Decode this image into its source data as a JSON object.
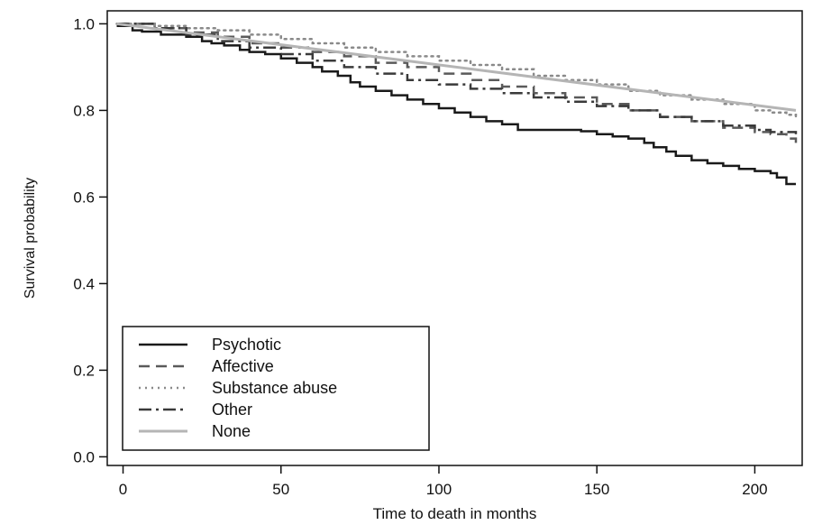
{
  "chart_data": {
    "type": "line",
    "title": "",
    "xlabel": "Time to death in months",
    "ylabel": "Survival probability",
    "xlim": [
      -5,
      215
    ],
    "ylim": [
      -0.02,
      1.03
    ],
    "xticks": [
      0,
      50,
      100,
      150,
      200
    ],
    "xtick_labels": [
      "0",
      "50",
      "100",
      "150",
      "200"
    ],
    "yticks": [
      0.0,
      0.2,
      0.4,
      0.6,
      0.8,
      1.0
    ],
    "ytick_labels": [
      "0.0",
      "0.2",
      "0.4",
      "0.6",
      "0.8",
      "1.0"
    ],
    "grid": false,
    "legend_position": "bottom-left",
    "series": [
      {
        "name": "Psychotic",
        "style": "solid",
        "color": "#1a1a1a",
        "x": [
          -2,
          3,
          6,
          12,
          20,
          25,
          28,
          32,
          37,
          40,
          45,
          50,
          55,
          60,
          63,
          68,
          72,
          75,
          80,
          85,
          90,
          95,
          100,
          105,
          110,
          115,
          120,
          125,
          135,
          145,
          150,
          155,
          160,
          165,
          168,
          172,
          175,
          180,
          185,
          190,
          195,
          200,
          205,
          207,
          210,
          213
        ],
        "y": [
          0.995,
          0.985,
          0.982,
          0.975,
          0.97,
          0.96,
          0.955,
          0.95,
          0.94,
          0.935,
          0.93,
          0.92,
          0.91,
          0.9,
          0.89,
          0.88,
          0.865,
          0.855,
          0.845,
          0.835,
          0.825,
          0.815,
          0.805,
          0.795,
          0.785,
          0.775,
          0.768,
          0.755,
          0.755,
          0.752,
          0.745,
          0.74,
          0.735,
          0.725,
          0.715,
          0.705,
          0.695,
          0.685,
          0.678,
          0.672,
          0.665,
          0.66,
          0.655,
          0.645,
          0.63,
          0.63
        ]
      },
      {
        "name": "Affective",
        "style": "dashed",
        "color": "#5a5a5a",
        "x": [
          -2,
          10,
          20,
          30,
          40,
          50,
          60,
          70,
          80,
          90,
          100,
          110,
          120,
          130,
          140,
          150,
          160,
          170,
          180,
          190,
          200,
          205,
          210,
          213
        ],
        "y": [
          1.0,
          0.99,
          0.98,
          0.97,
          0.955,
          0.945,
          0.935,
          0.925,
          0.91,
          0.9,
          0.885,
          0.87,
          0.855,
          0.84,
          0.83,
          0.815,
          0.8,
          0.785,
          0.775,
          0.76,
          0.75,
          0.745,
          0.735,
          0.725
        ]
      },
      {
        "name": "Substance abuse",
        "style": "dotted",
        "color": "#8a8a8a",
        "x": [
          -2,
          10,
          20,
          30,
          40,
          50,
          60,
          70,
          80,
          90,
          100,
          110,
          120,
          130,
          140,
          150,
          160,
          170,
          180,
          190,
          200,
          205,
          210,
          213
        ],
        "y": [
          1.0,
          0.995,
          0.99,
          0.985,
          0.975,
          0.965,
          0.955,
          0.945,
          0.935,
          0.925,
          0.915,
          0.905,
          0.895,
          0.88,
          0.87,
          0.86,
          0.845,
          0.835,
          0.825,
          0.815,
          0.8,
          0.795,
          0.79,
          0.785
        ]
      },
      {
        "name": "Other",
        "style": "dashdot",
        "color": "#3a3a3a",
        "x": [
          -2,
          10,
          20,
          30,
          40,
          50,
          60,
          70,
          80,
          90,
          100,
          110,
          120,
          130,
          140,
          150,
          160,
          170,
          180,
          190,
          200,
          205,
          210,
          213
        ],
        "y": [
          1.0,
          0.99,
          0.975,
          0.96,
          0.945,
          0.93,
          0.915,
          0.9,
          0.885,
          0.87,
          0.86,
          0.85,
          0.84,
          0.83,
          0.82,
          0.81,
          0.8,
          0.785,
          0.775,
          0.765,
          0.755,
          0.75,
          0.75,
          0.745
        ]
      },
      {
        "name": "None",
        "style": "solid",
        "color": "#b5b5b5",
        "x": [
          -2,
          213
        ],
        "y": [
          1.0,
          0.8
        ]
      }
    ]
  }
}
